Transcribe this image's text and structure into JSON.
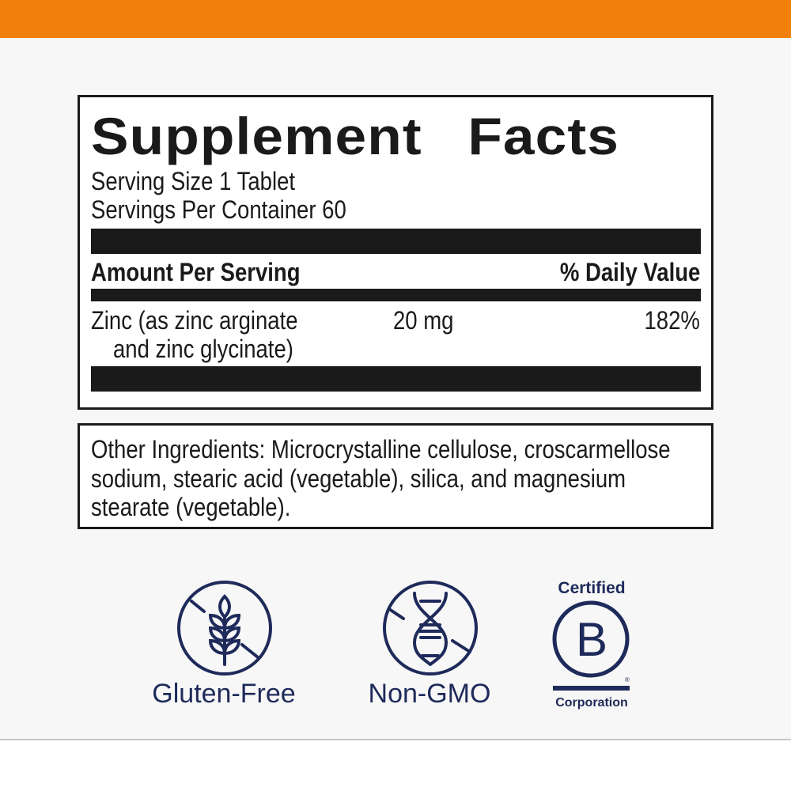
{
  "colors": {
    "accent": "#f07f0c",
    "icon": "#1e2a5a",
    "text": "#1a1a1a"
  },
  "facts": {
    "title": "Supplement Facts",
    "serving_size": "Serving Size 1 Tablet",
    "servings_per_container": "Servings Per Container 60",
    "amount_header": "Amount Per Serving",
    "dv_header": "% Daily Value",
    "rows": [
      {
        "name_line1": "Zinc (as zinc arginate",
        "name_line2": "and zinc glycinate)",
        "amount": "20 mg",
        "dv": "182%"
      }
    ]
  },
  "other": {
    "lines": [
      "Other Ingredients: Microcrystalline cellulose, croscarmellose",
      "sodium, stearic acid (vegetable), silica, and magnesium",
      "stearate (vegetable)."
    ]
  },
  "badges": [
    {
      "label": "Gluten-Free",
      "icon": "wheat-crossed-icon"
    },
    {
      "label": "Non-GMO",
      "icon": "dna-crossed-icon"
    },
    {
      "label_top": "Certified",
      "label_bottom": "Corporation",
      "letter": "B",
      "icon": "b-corp-logo",
      "mark": "®"
    }
  ]
}
